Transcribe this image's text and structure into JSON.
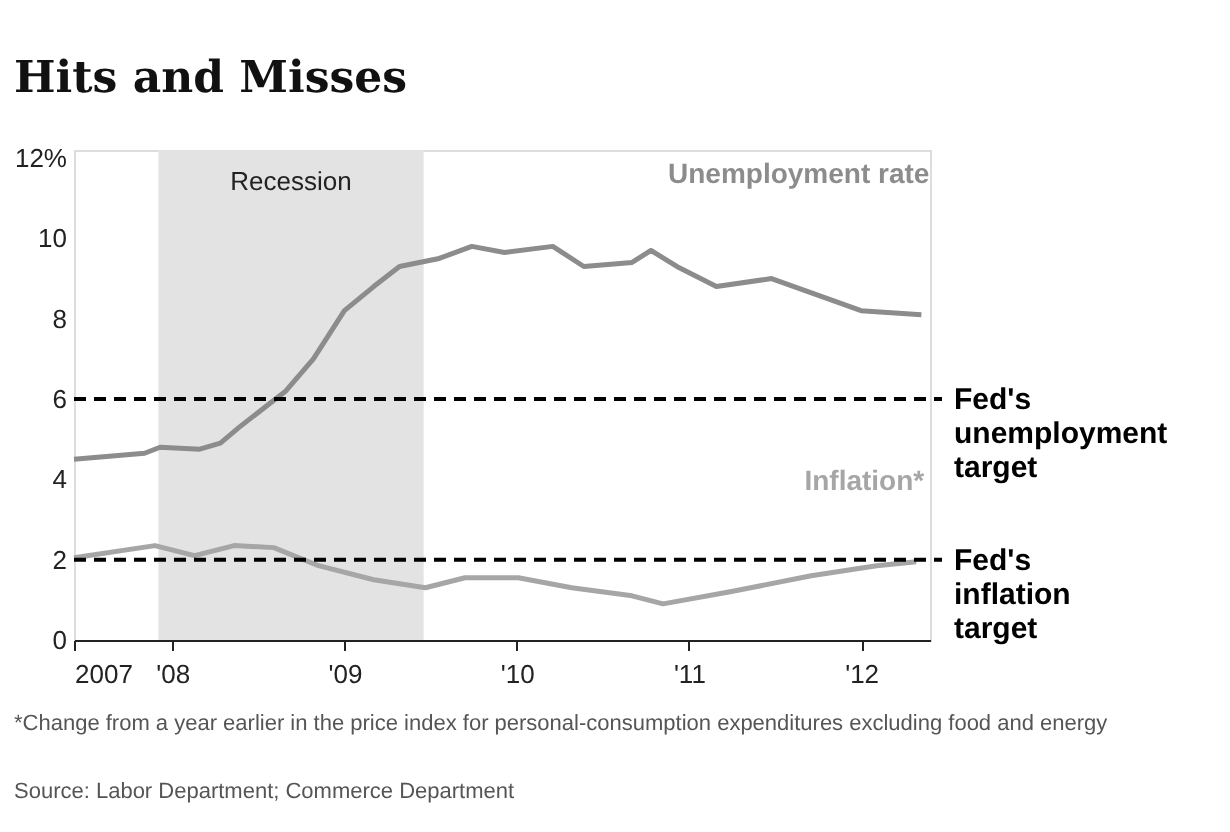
{
  "chart_data": {
    "type": "line",
    "title": "Hits and Misses",
    "xlim": [
      2007.43,
      2012.4
    ],
    "xticks": [
      {
        "value": 2007.43,
        "label": "2007"
      },
      {
        "value": 2008,
        "label": "'08"
      },
      {
        "value": 2009,
        "label": "'09"
      },
      {
        "value": 2010,
        "label": "'10"
      },
      {
        "value": 2011,
        "label": "'11"
      },
      {
        "value": 2012,
        "label": "'12"
      }
    ],
    "ylim": [
      0,
      12.2
    ],
    "yticks": [
      0,
      2,
      4,
      6,
      8,
      10,
      {
        "value": 12,
        "label": "12%"
      }
    ],
    "grid": false,
    "line_style": "solid",
    "series": [
      {
        "name": "Unemployment rate",
        "color": "#8c8c8c",
        "x": [
          2007.43,
          2007.84,
          2007.93,
          2008.16,
          2008.28,
          2008.39,
          2008.66,
          2008.82,
          2009.0,
          2009.17,
          2009.32,
          2009.55,
          2009.74,
          2009.93,
          2010.21,
          2010.39,
          2010.67,
          2010.78,
          2010.93,
          2011.16,
          2011.48,
          2011.74,
          2012.0,
          2012.35
        ],
        "values": [
          4.5,
          4.65,
          4.8,
          4.75,
          4.9,
          5.3,
          6.2,
          7.0,
          8.2,
          8.8,
          9.3,
          9.5,
          9.8,
          9.65,
          9.8,
          9.3,
          9.4,
          9.7,
          9.3,
          8.8,
          9.0,
          8.6,
          8.2,
          8.1
        ]
      },
      {
        "name": "Inflation*",
        "color": "#a6a6a6",
        "x": [
          2007.43,
          2007.9,
          2008.13,
          2008.36,
          2008.59,
          2008.85,
          2009.17,
          2009.47,
          2009.7,
          2010.01,
          2010.32,
          2010.67,
          2010.85,
          2011.24,
          2011.71,
          2012.09,
          2012.32
        ],
        "values": [
          2.05,
          2.35,
          2.1,
          2.35,
          2.3,
          1.85,
          1.5,
          1.3,
          1.55,
          1.55,
          1.3,
          1.1,
          0.9,
          1.2,
          1.6,
          1.85,
          1.95
        ]
      }
    ],
    "ref_lines": [
      {
        "axis": "y",
        "value": 6,
        "label": "Fed's unemployment target",
        "color": "#000000",
        "line_style": "dashed"
      },
      {
        "axis": "y",
        "value": 2,
        "label": "Fed's inflation target",
        "color": "#000000",
        "line_style": "dashed"
      }
    ],
    "bands": [
      {
        "axis": "x",
        "from": 2007.92,
        "to": 2009.46,
        "label": "Recession",
        "color": "#e3e3e3"
      }
    ],
    "annotations": [
      "*Change from a year earlier in the price index for personal-consumption expenditures excluding food and energy",
      "Source: Labor Department; Commerce Department"
    ]
  }
}
